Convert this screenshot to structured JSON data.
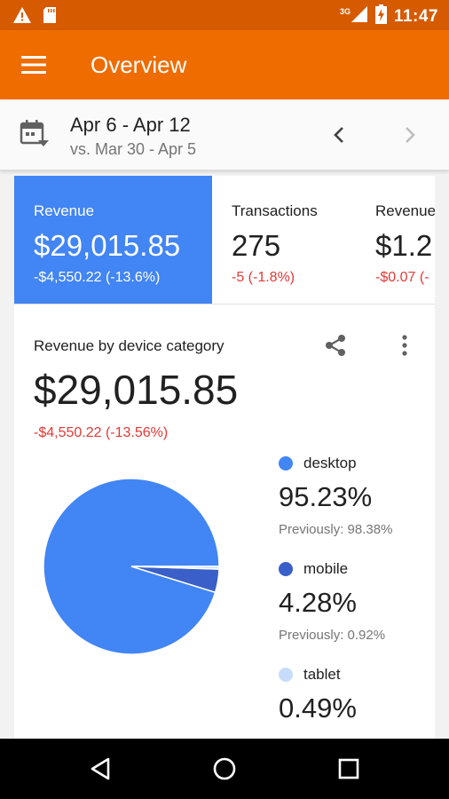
{
  "status_bar": {
    "time": "11:47",
    "network": "3G",
    "icons": [
      "warning-icon",
      "sd-card-icon",
      "signal-icon",
      "battery-charging-icon"
    ]
  },
  "app_bar": {
    "title": "Overview",
    "menu_icon": "hamburger-menu-icon"
  },
  "date_range": {
    "current": "Apr 6 - Apr 12",
    "comparison": "vs. Mar 30 - Apr 5",
    "icon": "calendar-dropdown-icon"
  },
  "metrics": [
    {
      "label": "Revenue",
      "value": "$29,015.85",
      "delta": "-$4,550.22 (-13.6%)"
    },
    {
      "label": "Transactions",
      "value": "275",
      "delta": "-5 (-1.8%)"
    },
    {
      "label": "Revenue",
      "value": "$1.2",
      "delta": "-$0.07 (-"
    }
  ],
  "chart_section": {
    "title": "Revenue by device category",
    "total": "$29,015.85",
    "total_delta": "-$4,550.22 (-13.56%)"
  },
  "chart_data": {
    "type": "pie",
    "categories": [
      "desktop",
      "mobile",
      "tablet"
    ],
    "values": [
      95.23,
      4.28,
      0.49
    ],
    "colors": [
      "#4285f4",
      "#3a5fc8",
      "#c6dcfa"
    ]
  },
  "legend": [
    {
      "name": "desktop",
      "percent": "95.23%",
      "previous": "Previously: 98.38%",
      "color": "#4285f4"
    },
    {
      "name": "mobile",
      "percent": "4.28%",
      "previous": "Previously: 0.92%",
      "color": "#3a5fc8"
    },
    {
      "name": "tablet",
      "percent": "0.49%",
      "color": "#c6dcfa"
    }
  ],
  "nav_bar": {
    "icons": [
      "back-icon",
      "home-icon",
      "recents-icon"
    ]
  }
}
